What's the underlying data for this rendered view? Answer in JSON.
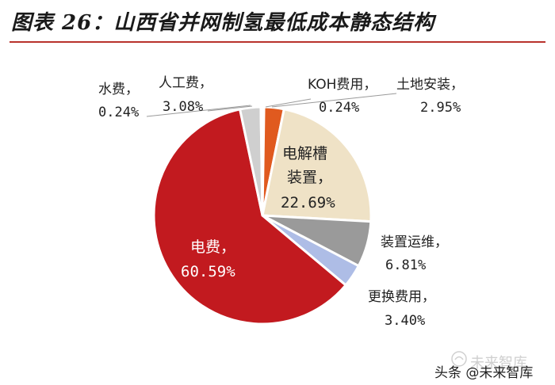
{
  "title": "图表 26：山西省并网制氢最低成本静态结构",
  "chart_data": {
    "type": "pie",
    "title": "图表 26：山西省并网制氢最低成本静态结构",
    "slices": [
      {
        "name": "KOH费用",
        "value": 0.24,
        "label": "0.24%",
        "color": "#e8491d"
      },
      {
        "name": "土地安装",
        "value": 2.95,
        "label": "2.95%",
        "color": "#e05a1f"
      },
      {
        "name": "电解槽装置",
        "value": 22.69,
        "label": "22.69%",
        "color": "#efe2c6"
      },
      {
        "name": "装置运维",
        "value": 6.81,
        "label": "6.81%",
        "color": "#9a9a9a"
      },
      {
        "name": "更换费用",
        "value": 3.4,
        "label": "3.40%",
        "color": "#aebde6"
      },
      {
        "name": "电费",
        "value": 60.59,
        "label": "60.59%",
        "color": "#c21a1f"
      },
      {
        "name": "人工费",
        "value": 3.08,
        "label": "3.08%",
        "color": "#cfcfcf"
      },
      {
        "name": "水费",
        "value": 0.24,
        "label": "0.24%",
        "color": "#ffffff"
      }
    ]
  },
  "labels": {
    "water": {
      "name": "水费，",
      "value": "0.24%"
    },
    "labor": {
      "name": "人工费，",
      "value": "3.08%"
    },
    "koh": {
      "name": "KOH费用，",
      "value": "0.24%"
    },
    "land": {
      "name": "土地安装，",
      "value": "2.95%"
    },
    "electrolyzer": {
      "name1": "电解槽",
      "name2": "装置，",
      "value": "22.69%"
    },
    "maintenance": {
      "name": "装置运维，",
      "value": "6.81%"
    },
    "replacement": {
      "name": "更换费用，",
      "value": "3.40%"
    },
    "electricity": {
      "name": "电费，",
      "value": "60.59%"
    }
  },
  "watermark": {
    "top": "未来智库",
    "main": "头条 @未来智库"
  }
}
